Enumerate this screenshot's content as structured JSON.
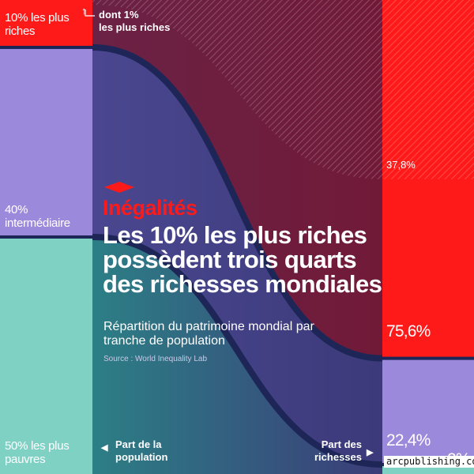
{
  "chart_data": {
    "type": "sankey",
    "nodes_left": [
      {
        "label": "10% les plus\nriches",
        "value": 10,
        "color": "#ff1a1a"
      },
      {
        "label": "40%\nintermédiaire",
        "value": 40,
        "color": "#9b89dc"
      },
      {
        "label": "50% les plus\npauvres",
        "value": 50,
        "color": "#7fd1c4"
      }
    ],
    "nodes_right": [
      {
        "label": "75,6%",
        "value": 75.6,
        "color": "#ff1a1a"
      },
      {
        "label": "22,4%",
        "value": 22.4,
        "color": "#9b89dc"
      },
      {
        "label": "2%",
        "value": 2,
        "color": "#7fd1c4"
      }
    ],
    "top1": {
      "label": "dont 1%\nles plus riches",
      "share": 37.8,
      "value_label": "37,8%"
    },
    "axis_left": "Part de la\npopulation",
    "axis_right": "Part des\nrichesses"
  },
  "title": {
    "kicker": "Inégalités",
    "headline": "Les 10% les plus riches possèdent trois quarts des richesses mondiales",
    "subtitle": "Répartition du patrimoine mondial par tranche de population",
    "source": "Source : World Inequality Lab"
  },
  "credit": "arcpublishing.com"
}
